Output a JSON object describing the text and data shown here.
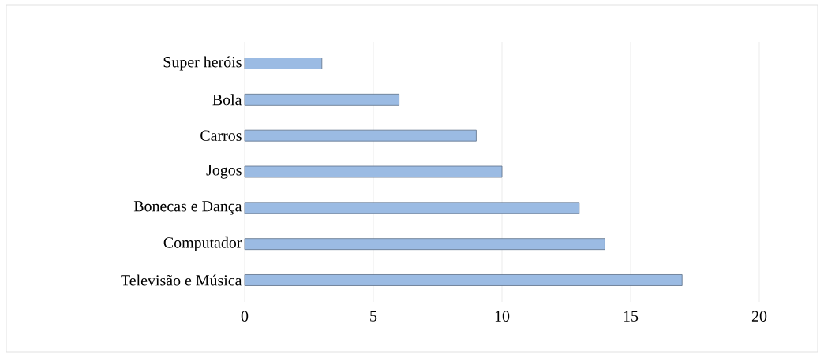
{
  "chart_data": {
    "type": "bar",
    "orientation": "horizontal",
    "categories": [
      "Super heróis",
      "Bola",
      "Carros",
      "Jogos",
      "Bonecas e Dança",
      "Computador",
      "Televisão e Música"
    ],
    "values": [
      3,
      6,
      9,
      10,
      13,
      14,
      17
    ],
    "color": "#9bbbe3",
    "xlim": [
      0,
      20
    ],
    "xticks": [
      0,
      5,
      10,
      15,
      20
    ],
    "grid": "x"
  }
}
